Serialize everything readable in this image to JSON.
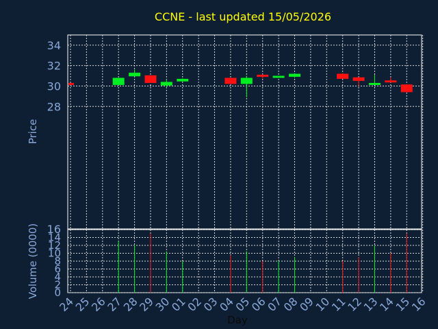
{
  "chart_data": {
    "type": "candlestick",
    "title": "CCNE - last updated 15/05/2026",
    "xlabel": "Day",
    "ylabel": "Price",
    "volume_label": "Volume (0000)",
    "grid": true,
    "x": [
      "24",
      "25",
      "26",
      "27",
      "28",
      "29",
      "30",
      "01",
      "02",
      "03",
      "04",
      "05",
      "06",
      "07",
      "08",
      "09",
      "10",
      "11",
      "12",
      "13",
      "14",
      "15",
      "16"
    ],
    "ylim": [
      16,
      35
    ],
    "price_ticks": [
      34,
      32,
      30,
      28
    ],
    "volume_ylim": [
      0,
      16
    ],
    "volume_ticks": [
      16,
      14,
      12,
      10,
      8,
      6,
      4,
      2,
      0
    ],
    "colors": {
      "background": "#0f1f33",
      "up": "#00ee22",
      "down": "#ff1111",
      "grid": "#d8d8d8",
      "axis_text": "#8aa8d8",
      "title": "#ffff00"
    },
    "candles": [
      {
        "day": "24",
        "open": 30.3,
        "close": 30.15,
        "high": 30.3,
        "low": 30.15,
        "volume": 0
      },
      {
        "day": "27",
        "open": 30.1,
        "close": 30.8,
        "high": 30.8,
        "low": 30.1,
        "volume": 13
      },
      {
        "day": "28",
        "open": 30.95,
        "close": 31.3,
        "high": 31.6,
        "low": 30.95,
        "volume": 12
      },
      {
        "day": "29",
        "open": 31.05,
        "close": 30.3,
        "high": 31.05,
        "low": 30.3,
        "volume": 15
      },
      {
        "day": "30",
        "open": 30.05,
        "close": 30.4,
        "high": 30.65,
        "low": 29.85,
        "volume": 10.5
      },
      {
        "day": "01",
        "open": 30.45,
        "close": 30.7,
        "high": 30.75,
        "low": 30.4,
        "volume": 8
      },
      {
        "day": "04",
        "open": 30.8,
        "close": 30.2,
        "high": 30.8,
        "low": 30.2,
        "volume": 9.5
      },
      {
        "day": "05",
        "open": 30.2,
        "close": 30.8,
        "high": 31.0,
        "low": 28.9,
        "volume": 10.5
      },
      {
        "day": "06",
        "open": 31.1,
        "close": 30.95,
        "high": 31.15,
        "low": 30.75,
        "volume": 8
      },
      {
        "day": "07",
        "open": 30.95,
        "close": 31.0,
        "high": 31.0,
        "low": 30.95,
        "volume": 8
      },
      {
        "day": "08",
        "open": 30.9,
        "close": 31.2,
        "high": 31.2,
        "low": 30.8,
        "volume": 9
      },
      {
        "day": "11",
        "open": 31.2,
        "close": 30.7,
        "high": 31.25,
        "low": 30.7,
        "volume": 8
      },
      {
        "day": "12",
        "open": 30.85,
        "close": 30.5,
        "high": 30.85,
        "low": 30.0,
        "volume": 9
      },
      {
        "day": "13",
        "open": 30.25,
        "close": 30.3,
        "high": 31.1,
        "low": 30.25,
        "volume": 12
      },
      {
        "day": "14",
        "open": 30.55,
        "close": 30.4,
        "high": 30.85,
        "low": 30.4,
        "volume": 10
      },
      {
        "day": "15",
        "open": 30.15,
        "close": 29.4,
        "high": 30.15,
        "low": 29.35,
        "volume": 15
      }
    ]
  }
}
